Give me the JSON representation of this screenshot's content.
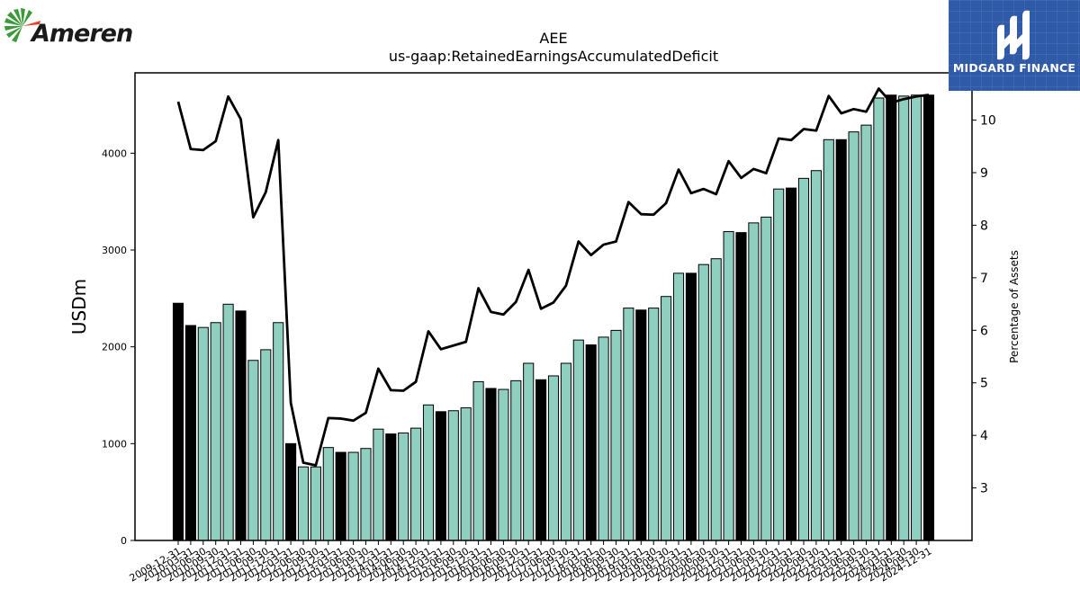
{
  "logos": {
    "left_text": "Ameren",
    "right_text": "MIDGARD FINANCE",
    "left_colors": {
      "leaves": "#3a9a3a",
      "accent": "#e8402a"
    },
    "right_color": "#2f5aa8"
  },
  "chart_data": {
    "type": "bar",
    "title": "AEE",
    "subtitle": "us-gaap:RetainedEarningsAccumulatedDeficit",
    "ylabel": "USDm",
    "y2label": "Percentage of Assets",
    "ylim": [
      0,
      4830
    ],
    "y2lim": [
      2.0,
      10.9
    ],
    "yticks": [
      0,
      1000,
      2000,
      3000,
      4000
    ],
    "y2ticks": [
      3,
      4,
      5,
      6,
      7,
      8,
      9,
      10
    ],
    "colors": {
      "annual_bar": "#000000",
      "quarter_bar": "#8ecfc0",
      "line": "#000000"
    },
    "categories": [
      "2009-12-31",
      "2010-03-31",
      "2010-06-30",
      "2010-09-30",
      "2010-12-31",
      "2011-03-31",
      "2011-06-30",
      "2011-09-30",
      "2011-12-31",
      "2012-03-31",
      "2012-06-30",
      "2012-09-30",
      "2012-12-31",
      "2013-03-31",
      "2013-06-30",
      "2013-09-30",
      "2013-12-31",
      "2014-03-31",
      "2014-06-30",
      "2014-09-30",
      "2014-12-31",
      "2015-03-31",
      "2015-06-30",
      "2015-09-30",
      "2015-12-31",
      "2016-03-31",
      "2016-06-30",
      "2016-09-30",
      "2016-12-31",
      "2017-03-31",
      "2017-06-30",
      "2017-09-30",
      "2017-12-31",
      "2018-03-31",
      "2018-06-30",
      "2018-09-30",
      "2018-12-31",
      "2019-03-31",
      "2019-06-30",
      "2019-09-30",
      "2019-12-31",
      "2020-03-31",
      "2020-06-30",
      "2020-09-30",
      "2020-12-31",
      "2021-03-31",
      "2021-06-30",
      "2021-09-30",
      "2021-12-31",
      "2022-03-31",
      "2022-06-30",
      "2022-09-30",
      "2022-12-31",
      "2023-03-31",
      "2023-06-30",
      "2023-09-30",
      "2023-12-31",
      "2024-03-31",
      "2024-06-30",
      "2024-09-30",
      "2024-12-31"
    ],
    "tick_labels_shown": [
      "2009-12-31",
      "2010-03-31",
      "2010-06-30",
      "2010-09-30",
      "2010-12-31",
      "2011-03-31",
      "2011-06-30",
      "2011-09-30",
      "2011-12-31",
      "2012-03-31",
      "2012-06-30",
      "2012-09-30",
      "2012-12-31",
      "2013-03-31",
      "2013-06-30",
      "2013-09-30",
      "2013-12-31",
      "2014-03-31",
      "2014-06-30",
      "2014-09-30",
      "2014-12-31",
      "2015-03-31",
      "2015-06-30",
      "2015-09-30",
      "2015-12-31",
      "2016-03-31",
      "2016-06-30",
      "2016-09-30",
      "2016-12-31",
      "2017-03-31",
      "2017-06-30",
      "2017-09-30",
      "2017-12-31",
      "2018-03-31",
      "2018-06-30",
      "2018-09-30",
      "2018-12-31",
      "2019-03-31",
      "2019-06-30",
      "2019-09-30",
      "2019-12-31",
      "2020-03-31",
      "2020-06-30",
      "2020-09-30",
      "2020-12-31",
      "2021-03-31",
      "2021-06-30",
      "2021-09-30",
      "2021-12-31",
      "2022-03-31",
      "2022-06-30",
      "2022-09-30",
      "2022-12-31",
      "2023-03-31",
      "2023-06-30",
      "2023-09-30",
      "2023-12-31",
      "2024-03-31",
      "2024-06-30",
      "2024-09-30",
      "2024-12-31"
    ],
    "series": [
      {
        "type": "bar",
        "values": [
          2450,
          2220,
          2200,
          2250,
          2440,
          2370,
          1860,
          1970,
          2250,
          1000,
          760,
          760,
          960,
          910,
          910,
          950,
          1150,
          1100,
          1110,
          1160,
          1400,
          1330,
          1340,
          1370,
          1640,
          1570,
          1560,
          1650,
          1830,
          1660,
          1700,
          1830,
          2070,
          2020,
          2100,
          2170,
          2400,
          2380,
          2400,
          2520,
          2760,
          2760,
          2850,
          2910,
          3190,
          3180,
          3280,
          3340,
          3630,
          3640,
          3740,
          3820,
          4140,
          4140,
          4220,
          4290,
          4570,
          4600,
          4590,
          4600,
          4600
        ],
        "annual": [
          true,
          true,
          false,
          false,
          false,
          true,
          false,
          false,
          false,
          true,
          false,
          false,
          false,
          true,
          false,
          false,
          false,
          true,
          false,
          false,
          false,
          true,
          false,
          false,
          false,
          true,
          false,
          false,
          false,
          true,
          false,
          false,
          false,
          true,
          false,
          false,
          false,
          true,
          false,
          false,
          false,
          true,
          false,
          false,
          false,
          true,
          false,
          false,
          false,
          true,
          false,
          false,
          false,
          true,
          false,
          false,
          false,
          true,
          false,
          false,
          true
        ]
      },
      {
        "type": "line",
        "axis": "right",
        "values": [
          10.35,
          9.45,
          9.43,
          9.6,
          10.45,
          10.02,
          8.15,
          8.63,
          9.62,
          4.62,
          3.48,
          3.43,
          4.33,
          4.32,
          4.28,
          4.43,
          5.27,
          4.86,
          4.85,
          5.02,
          5.98,
          5.64,
          5.71,
          5.78,
          6.8,
          6.35,
          6.3,
          6.54,
          7.15,
          6.41,
          6.53,
          6.85,
          7.69,
          7.43,
          7.63,
          7.69,
          8.44,
          8.21,
          8.2,
          8.42,
          9.06,
          8.61,
          8.69,
          8.59,
          9.22,
          8.9,
          9.07,
          8.99,
          9.65,
          9.62,
          9.83,
          9.8,
          10.46,
          10.13,
          10.21,
          10.16,
          10.6,
          10.33,
          10.4,
          10.45,
          10.48
        ]
      }
    ]
  }
}
